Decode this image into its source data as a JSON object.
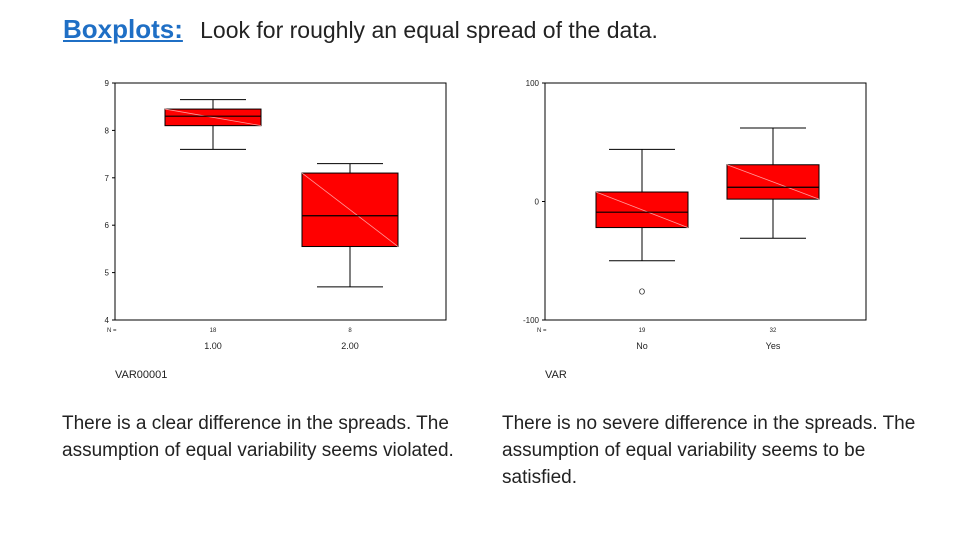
{
  "header": {
    "heading": "Boxplots:",
    "subtitle": "Look for roughly an equal spread of the data."
  },
  "colors": {
    "box_fill": "#ff0000",
    "heading": "#1f6fc5"
  },
  "chart_data": [
    {
      "type": "boxplot",
      "xlabel": "VAR00001",
      "n_label": "N =",
      "ylim": [
        4,
        9
      ],
      "yticks": [
        "4",
        "5",
        "6",
        "7",
        "8",
        "9"
      ],
      "categories": [
        "1.00",
        "2.00"
      ],
      "n": [
        "18",
        "8"
      ],
      "boxes": [
        {
          "whisker_low": 7.6,
          "q1": 8.1,
          "median": 8.3,
          "q3": 8.45,
          "whisker_high": 8.65
        },
        {
          "whisker_low": 4.7,
          "q1": 5.55,
          "median": 6.2,
          "q3": 7.1,
          "whisker_high": 7.3
        }
      ],
      "outliers": []
    },
    {
      "type": "boxplot",
      "xlabel": "VAR",
      "n_label": "N =",
      "ylim": [
        -100,
        100
      ],
      "yticks": [
        "-100",
        "0",
        "100"
      ],
      "categories": [
        "No",
        "Yes"
      ],
      "n": [
        "19",
        "32"
      ],
      "boxes": [
        {
          "whisker_low": -50,
          "q1": -22,
          "median": -9,
          "q3": 8,
          "whisker_high": 44
        },
        {
          "whisker_low": -31,
          "q1": 2,
          "median": 12,
          "q3": 31,
          "whisker_high": 62
        }
      ],
      "outliers": [
        {
          "category": 0,
          "value": -75,
          "symbol": "O"
        }
      ]
    }
  ],
  "captions": {
    "left": "There is a clear difference in the spreads.  The assumption of equal variability seems violated.",
    "right": "There is no severe difference in the spreads. The assumption of equal variability seems to be satisfied."
  }
}
